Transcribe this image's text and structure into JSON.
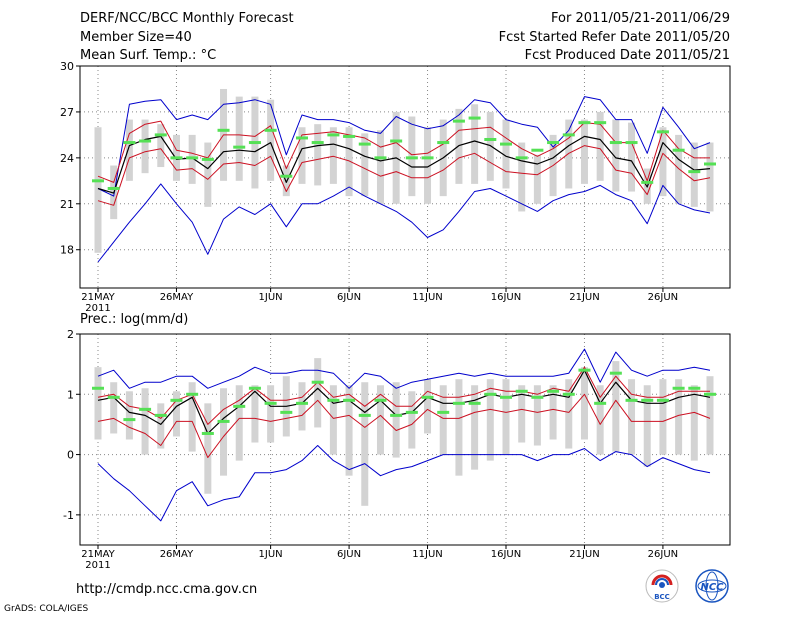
{
  "header": {
    "title": "DERF/NCC/BCC Monthly Forecast",
    "member_size": "Member Size=40",
    "variable": "Mean Surf. Temp.: °C",
    "period": "For 2011/05/21-2011/06/29",
    "started": "Fcst Started Refer Date 2011/05/20",
    "produced": "Fcst Produced Date 2011/05/21"
  },
  "footer": {
    "url": "http://cmdp.ncc.cma.gov.cn",
    "credit": "GrADS: COLA/IGES",
    "logo_left": "BCC",
    "logo_right": "NCC"
  },
  "colors": {
    "box": "#d3d3d3",
    "median": "#55e055",
    "mean": "#000000",
    "spread": "#cc1122",
    "envelope": "#0000cc",
    "grid": "#888888"
  },
  "chart_data": [
    {
      "type": "line",
      "title": "Mean Surf. Temp.: °C",
      "ylim": [
        15.5,
        30
      ],
      "yticks": [
        18,
        21,
        24,
        27,
        30
      ],
      "xticks": [
        {
          "day": 1,
          "label": "21MAY",
          "sublabel": "2011"
        },
        {
          "day": 6,
          "label": "26MAY"
        },
        {
          "day": 12,
          "label": "1JUN"
        },
        {
          "day": 17,
          "label": "6JUN"
        },
        {
          "day": 22,
          "label": "11JUN"
        },
        {
          "day": 27,
          "label": "16JUN"
        },
        {
          "day": 32,
          "label": "21JUN"
        },
        {
          "day": 37,
          "label": "26JUN"
        }
      ],
      "days": [
        1,
        2,
        3,
        4,
        5,
        6,
        7,
        8,
        9,
        10,
        11,
        12,
        13,
        14,
        15,
        16,
        17,
        18,
        19,
        20,
        21,
        22,
        23,
        24,
        25,
        26,
        27,
        28,
        29,
        30,
        31,
        32,
        33,
        34,
        35,
        36,
        37,
        38,
        39,
        40
      ],
      "series": [
        {
          "name": "max",
          "values": [
            22.0,
            21.5,
            27.5,
            27.7,
            27.8,
            26.5,
            26.8,
            26.5,
            27.5,
            27.6,
            27.8,
            27.5,
            24.2,
            26.8,
            26.5,
            26.5,
            26.3,
            25.8,
            25.6,
            26.7,
            26.2,
            25.9,
            26.1,
            26.8,
            27.8,
            27.6,
            26.5,
            26.2,
            26.0,
            24.7,
            25.8,
            28.0,
            27.8,
            26.5,
            26.5,
            24.3,
            27.3,
            26.0,
            24.6,
            25.0
          ]
        },
        {
          "name": "upper",
          "values": [
            22.8,
            22.4,
            25.6,
            26.2,
            26.4,
            24.5,
            24.3,
            24.0,
            25.5,
            25.5,
            25.4,
            26.1,
            23.3,
            25.5,
            25.6,
            25.7,
            25.5,
            25.3,
            24.7,
            25.0,
            24.2,
            24.3,
            24.9,
            25.8,
            25.9,
            26.0,
            25.3,
            24.6,
            24.1,
            24.6,
            25.3,
            26.3,
            26.2,
            25.0,
            25.0,
            22.5,
            25.8,
            24.6,
            24.0,
            24.0
          ]
        },
        {
          "name": "mean",
          "values": [
            22.0,
            21.7,
            24.8,
            25.2,
            25.4,
            23.9,
            24.0,
            23.3,
            24.4,
            24.5,
            24.4,
            25.0,
            22.4,
            24.6,
            24.8,
            24.9,
            24.6,
            24.1,
            23.8,
            24.0,
            23.4,
            23.4,
            24.0,
            24.8,
            25.1,
            24.8,
            24.1,
            23.8,
            23.6,
            24.0,
            24.8,
            25.4,
            25.2,
            24.0,
            23.8,
            22.1,
            25.0,
            23.9,
            23.2,
            23.3
          ]
        },
        {
          "name": "lower",
          "values": [
            21.2,
            20.9,
            24.0,
            24.4,
            24.6,
            23.2,
            23.3,
            22.6,
            23.6,
            23.7,
            23.5,
            24.1,
            21.8,
            23.7,
            23.9,
            24.1,
            23.8,
            23.3,
            22.8,
            23.1,
            22.7,
            22.7,
            23.2,
            24.0,
            24.3,
            23.7,
            23.1,
            23.0,
            22.9,
            23.5,
            24.3,
            24.8,
            24.6,
            23.2,
            23.0,
            21.6,
            24.3,
            23.3,
            22.5,
            22.7
          ]
        },
        {
          "name": "min",
          "values": [
            17.2,
            18.5,
            19.8,
            21.0,
            22.3,
            21.0,
            19.8,
            17.7,
            20.0,
            20.8,
            20.3,
            21.0,
            19.5,
            21.0,
            21.0,
            21.5,
            22.1,
            21.5,
            21.0,
            20.5,
            19.8,
            18.8,
            19.3,
            20.5,
            21.8,
            22.0,
            21.5,
            21.0,
            20.5,
            21.2,
            21.6,
            21.8,
            22.2,
            21.6,
            21.2,
            19.7,
            22.2,
            21.0,
            20.6,
            20.4
          ]
        },
        {
          "name": "median",
          "values": [
            22.5,
            22.0,
            25.0,
            25.1,
            25.5,
            24.0,
            24.0,
            23.9,
            25.8,
            24.7,
            25.0,
            25.8,
            22.8,
            25.3,
            25.0,
            25.5,
            25.4,
            24.9,
            24.0,
            25.1,
            24.0,
            24.0,
            25.0,
            26.4,
            26.6,
            25.2,
            24.9,
            24.0,
            24.5,
            25.0,
            25.5,
            26.3,
            26.3,
            25.0,
            25.0,
            22.4,
            25.7,
            24.5,
            23.1,
            23.6
          ]
        },
        {
          "name": "box_top",
          "values": [
            26.0,
            23.5,
            26.5,
            26.5,
            26.2,
            25.5,
            25.5,
            25.0,
            28.5,
            28.0,
            28.0,
            27.8,
            23.5,
            26.0,
            26.2,
            26.0,
            26.0,
            25.6,
            25.8,
            27.0,
            26.7,
            26.0,
            26.5,
            27.2,
            27.5,
            27.0,
            26.5,
            25.0,
            24.2,
            25.5,
            26.5,
            26.5,
            27.0,
            26.5,
            26.3,
            23.3,
            26.0,
            25.5,
            25.0,
            25.0
          ]
        },
        {
          "name": "box_bottom",
          "values": [
            17.8,
            20.0,
            22.5,
            23.0,
            23.4,
            22.5,
            22.3,
            20.8,
            22.5,
            22.5,
            22.0,
            22.5,
            21.5,
            22.3,
            22.2,
            22.3,
            21.5,
            21.5,
            21.0,
            21.0,
            21.5,
            21.0,
            21.5,
            22.3,
            22.3,
            22.5,
            22.0,
            20.5,
            21.0,
            21.5,
            22.0,
            22.3,
            22.5,
            21.8,
            21.8,
            21.0,
            21.5,
            21.0,
            20.8,
            20.5
          ]
        }
      ]
    },
    {
      "type": "line",
      "title": "Prec.: log(mm/d)",
      "ylim": [
        -1.5,
        2
      ],
      "yticks": [
        -1,
        0,
        1,
        2
      ],
      "xticks": [
        {
          "day": 1,
          "label": "21MAY",
          "sublabel": "2011"
        },
        {
          "day": 6,
          "label": "26MAY"
        },
        {
          "day": 12,
          "label": "1JUN"
        },
        {
          "day": 17,
          "label": "6JUN"
        },
        {
          "day": 22,
          "label": "11JUN"
        },
        {
          "day": 27,
          "label": "16JUN"
        },
        {
          "day": 32,
          "label": "21JUN"
        },
        {
          "day": 37,
          "label": "26JUN"
        }
      ],
      "days": [
        1,
        2,
        3,
        4,
        5,
        6,
        7,
        8,
        9,
        10,
        11,
        12,
        13,
        14,
        15,
        16,
        17,
        18,
        19,
        20,
        21,
        22,
        23,
        24,
        25,
        26,
        27,
        28,
        29,
        30,
        31,
        32,
        33,
        34,
        35,
        36,
        37,
        38,
        39,
        40
      ],
      "series": [
        {
          "name": "max",
          "values": [
            1.3,
            1.4,
            1.1,
            1.2,
            1.2,
            1.3,
            1.3,
            1.1,
            1.2,
            1.3,
            1.45,
            1.35,
            1.35,
            1.4,
            1.4,
            1.35,
            1.1,
            1.35,
            1.3,
            1.1,
            1.2,
            1.25,
            1.3,
            1.35,
            1.3,
            1.35,
            1.3,
            1.3,
            1.3,
            1.3,
            1.35,
            1.75,
            1.2,
            1.7,
            1.4,
            1.3,
            1.4,
            1.4,
            1.45,
            1.4
          ]
        },
        {
          "name": "upper",
          "values": [
            0.95,
            1.0,
            0.8,
            0.75,
            0.6,
            0.9,
            1.0,
            0.5,
            0.75,
            0.9,
            1.1,
            0.9,
            0.9,
            0.95,
            1.2,
            0.95,
            1.0,
            0.8,
            1.0,
            0.8,
            0.8,
            1.05,
            0.95,
            0.95,
            1.0,
            1.1,
            1.05,
            1.05,
            1.0,
            1.1,
            1.05,
            1.45,
            0.95,
            1.3,
            1.0,
            0.95,
            0.95,
            1.05,
            1.05,
            1.05
          ]
        },
        {
          "name": "mean",
          "values": [
            0.9,
            0.95,
            0.7,
            0.65,
            0.5,
            0.8,
            0.95,
            0.35,
            0.6,
            0.8,
            1.05,
            0.8,
            0.8,
            0.85,
            1.1,
            0.85,
            0.9,
            0.7,
            0.9,
            0.65,
            0.7,
            0.95,
            0.85,
            0.85,
            0.9,
            1.0,
            0.95,
            1.0,
            0.95,
            1.0,
            0.95,
            1.4,
            0.85,
            1.2,
            0.9,
            0.85,
            0.85,
            0.95,
            1.0,
            0.95
          ]
        },
        {
          "name": "lower",
          "values": [
            0.55,
            0.6,
            0.45,
            0.35,
            0.15,
            0.55,
            0.55,
            -0.05,
            0.3,
            0.6,
            0.6,
            0.55,
            0.6,
            0.65,
            0.9,
            0.6,
            0.65,
            0.45,
            0.65,
            0.4,
            0.5,
            0.75,
            0.6,
            0.6,
            0.7,
            0.75,
            0.7,
            0.75,
            0.7,
            0.75,
            0.7,
            1.0,
            0.5,
            0.9,
            0.55,
            0.55,
            0.55,
            0.65,
            0.7,
            0.6
          ]
        },
        {
          "name": "min",
          "values": [
            -0.15,
            -0.4,
            -0.6,
            -0.85,
            -1.1,
            -0.6,
            -0.45,
            -0.85,
            -0.75,
            -0.7,
            -0.3,
            -0.3,
            -0.25,
            -0.1,
            0.15,
            -0.1,
            -0.25,
            -0.15,
            -0.35,
            -0.25,
            -0.2,
            -0.1,
            0.0,
            0.0,
            0.0,
            0.0,
            0.0,
            0.0,
            -0.1,
            0.0,
            0.0,
            0.1,
            -0.1,
            0.05,
            0.0,
            -0.2,
            -0.05,
            -0.15,
            -0.25,
            -0.3
          ]
        },
        {
          "name": "median",
          "values": [
            1.1,
            0.95,
            0.58,
            0.75,
            0.65,
            0.9,
            1.0,
            0.35,
            0.55,
            0.8,
            1.1,
            0.85,
            0.7,
            0.85,
            1.2,
            0.9,
            0.9,
            0.65,
            0.9,
            0.65,
            0.7,
            0.95,
            0.7,
            0.85,
            0.85,
            1.0,
            0.95,
            1.05,
            0.95,
            1.05,
            1.0,
            1.4,
            0.85,
            1.35,
            0.9,
            0.9,
            0.9,
            1.1,
            1.1,
            1.0
          ]
        },
        {
          "name": "box_top",
          "values": [
            1.45,
            1.2,
            1.05,
            1.1,
            0.85,
            1.05,
            1.2,
            0.85,
            1.1,
            1.15,
            1.15,
            1.15,
            1.3,
            1.2,
            1.6,
            1.15,
            1.15,
            1.2,
            1.15,
            1.2,
            1.05,
            1.25,
            1.15,
            1.25,
            1.15,
            1.25,
            1.25,
            1.15,
            1.15,
            1.15,
            1.25,
            1.45,
            1.15,
            1.55,
            1.25,
            1.15,
            1.25,
            1.25,
            1.15,
            1.3
          ]
        },
        {
          "name": "box_bottom",
          "values": [
            0.25,
            0.35,
            0.25,
            0.0,
            0.1,
            0.3,
            0.05,
            -0.65,
            -0.35,
            -0.1,
            0.2,
            0.2,
            0.3,
            0.4,
            0.45,
            0.0,
            -0.35,
            -0.85,
            0.0,
            -0.05,
            0.1,
            0.35,
            0.0,
            -0.35,
            -0.25,
            -0.1,
            0.0,
            0.2,
            0.15,
            0.25,
            0.1,
            0.25,
            0.0,
            0.05,
            0.0,
            -0.2,
            0.0,
            0.0,
            -0.1,
            0.0
          ]
        }
      ]
    }
  ]
}
